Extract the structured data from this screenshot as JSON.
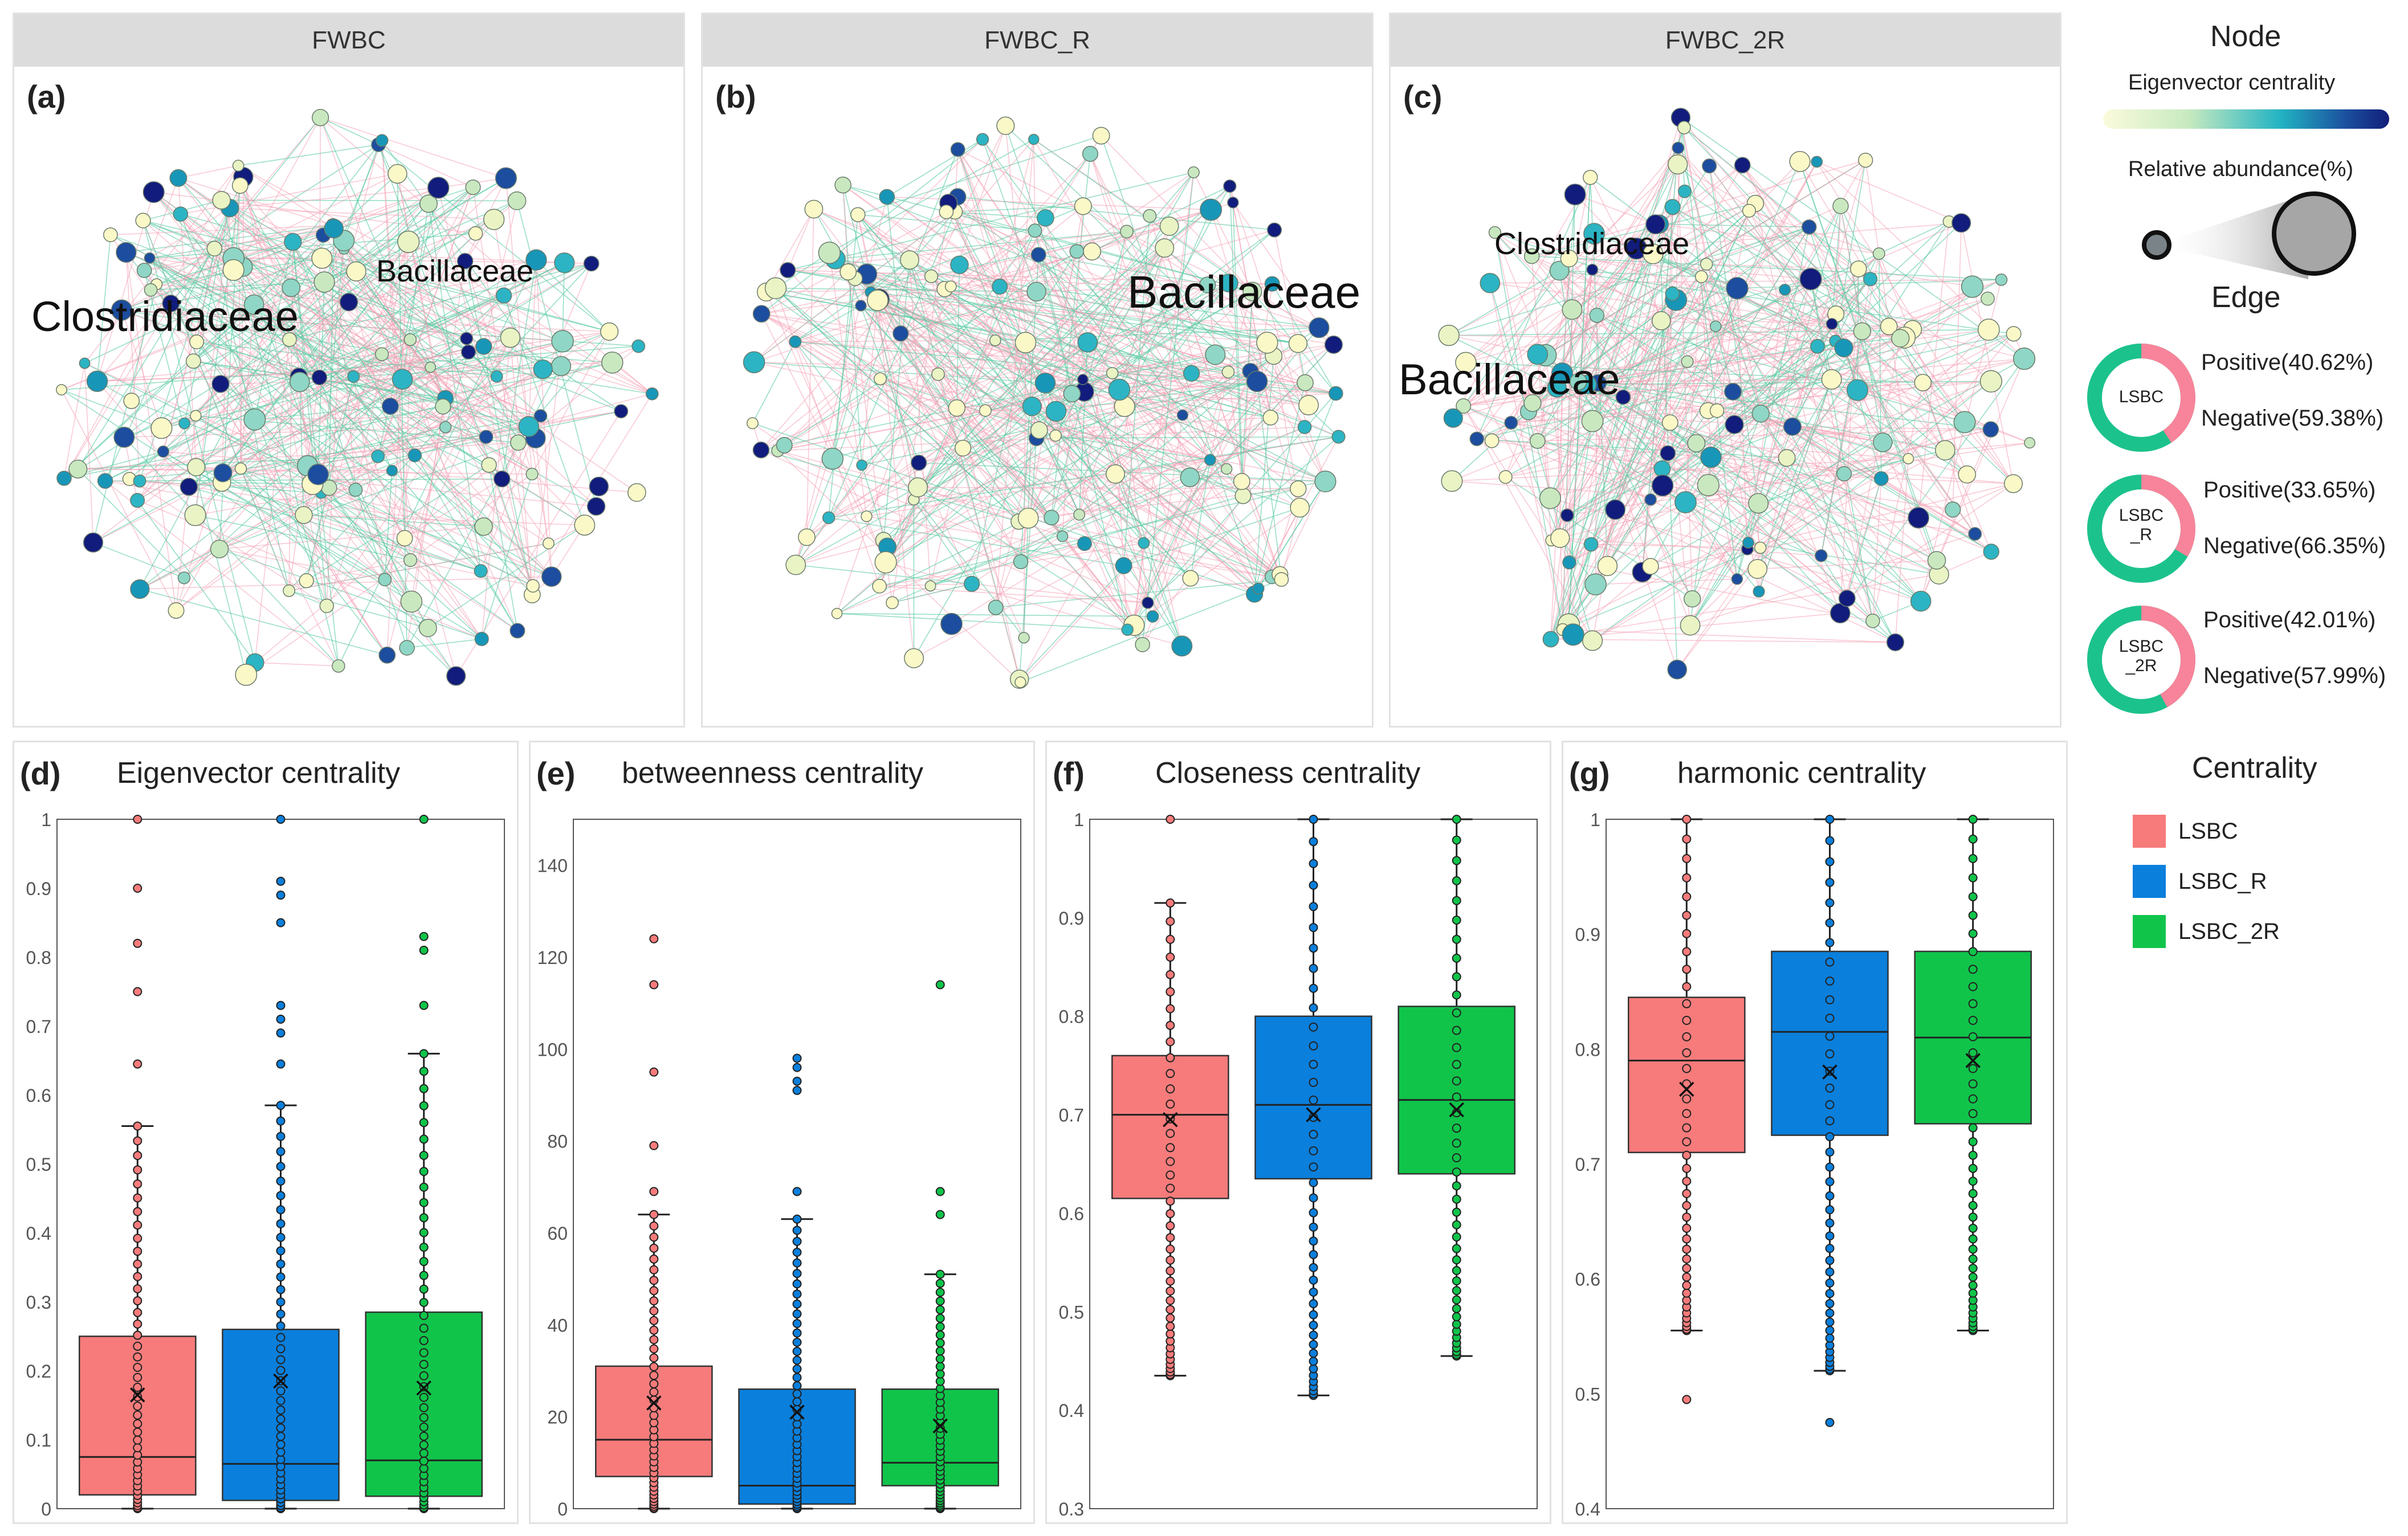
{
  "networks": [
    {
      "header": "FWBC",
      "tag": "(a)",
      "big_labels": [
        "Clostridiaceae",
        "Bacillaceae"
      ]
    },
    {
      "header": "FWBC_R",
      "tag": "(b)",
      "big_labels": [
        "Bacillaceae"
      ]
    },
    {
      "header": "FWBC_2R",
      "tag": "(c)",
      "big_labels": [
        "Clostridiaceae",
        "Bacillaceae"
      ]
    }
  ],
  "legend": {
    "node_title": "Node",
    "eigen_label": "Eigenvector centrality",
    "abundance_label": "Relative abundance(%)",
    "edge_title": "Edge",
    "rings": [
      {
        "center": "LSBC",
        "positive": "Positive(40.62%)",
        "negative": "Negative(59.38%)",
        "pos_frac": 0.4062
      },
      {
        "center": "LSBC_R",
        "positive": "Positive(33.65%)",
        "negative": "Negative(66.35%)",
        "pos_frac": 0.3365
      },
      {
        "center": "LSBC_2R",
        "positive": "Positive(42.01%)",
        "negative": "Negative(57.99%)",
        "pos_frac": 0.4201
      }
    ],
    "centrality_title": "Centrality",
    "groups": [
      {
        "name": "LSBC",
        "color": "#f77b7b"
      },
      {
        "name": "LSBC_R",
        "color": "#0a7fdc"
      },
      {
        "name": "LSBC_2R",
        "color": "#10c44a"
      }
    ],
    "colors": {
      "positive": "#f7849a",
      "negative": "#1cc28c",
      "edge_pos": "#f4a1b4",
      "edge_neg": "#57c9a2"
    }
  },
  "chart_data": [
    {
      "type": "box",
      "tag": "(d)",
      "title": "Eigenvector centrality",
      "ylim": [
        0,
        1
      ],
      "ticks": [
        "0",
        "0.1",
        "0.2",
        "0.3",
        "0.4",
        "0.5",
        "0.6",
        "0.7",
        "0.8",
        "0.9",
        "1"
      ],
      "series": [
        {
          "name": "LSBC",
          "min": 0,
          "q1": 0.02,
          "median": 0.075,
          "q3": 0.25,
          "max": 0.555,
          "mean": 0.165,
          "outliers": [
            0.645,
            0.75,
            0.82,
            0.9,
            1.0
          ]
        },
        {
          "name": "LSBC_R",
          "min": 0,
          "q1": 0.012,
          "median": 0.065,
          "q3": 0.26,
          "max": 0.585,
          "mean": 0.185,
          "outliers": [
            0.645,
            0.69,
            0.71,
            0.73,
            0.85,
            0.89,
            0.91,
            1.0
          ]
        },
        {
          "name": "LSBC_2R",
          "min": 0,
          "q1": 0.018,
          "median": 0.07,
          "q3": 0.285,
          "max": 0.66,
          "mean": 0.175,
          "outliers": [
            0.73,
            0.81,
            0.83,
            1.0
          ]
        }
      ]
    },
    {
      "type": "box",
      "tag": "(e)",
      "title": "betweenness centrality",
      "ylim": [
        0,
        150
      ],
      "ticks": [
        "0",
        "20",
        "40",
        "60",
        "80",
        "100",
        "120",
        "140"
      ],
      "series": [
        {
          "name": "LSBC",
          "min": 0,
          "q1": 7,
          "median": 15,
          "q3": 31,
          "max": 64,
          "mean": 23,
          "outliers": [
            69,
            79,
            95,
            114,
            124
          ]
        },
        {
          "name": "LSBC_R",
          "min": 0,
          "q1": 1,
          "median": 5,
          "q3": 26,
          "max": 63,
          "mean": 21,
          "outliers": [
            69,
            91,
            93,
            96,
            98
          ]
        },
        {
          "name": "LSBC_2R",
          "min": 0,
          "q1": 5,
          "median": 10,
          "q3": 26,
          "max": 51,
          "mean": 18,
          "outliers": [
            64,
            69,
            114
          ]
        }
      ]
    },
    {
      "type": "box",
      "tag": "(f)",
      "title": "Closeness centrality",
      "ylim": [
        0.3,
        1
      ],
      "ticks": [
        "0.3",
        "0.4",
        "0.5",
        "0.6",
        "0.7",
        "0.8",
        "0.9",
        "1"
      ],
      "series": [
        {
          "name": "LSBC",
          "min": 0.435,
          "q1": 0.615,
          "median": 0.7,
          "q3": 0.76,
          "max": 0.915,
          "mean": 0.695,
          "outliers": [
            1.0
          ]
        },
        {
          "name": "LSBC_R",
          "min": 0.415,
          "q1": 0.635,
          "median": 0.71,
          "q3": 0.8,
          "max": 1.0,
          "mean": 0.7,
          "outliers": []
        },
        {
          "name": "LSBC_2R",
          "min": 0.455,
          "q1": 0.64,
          "median": 0.715,
          "q3": 0.81,
          "max": 1.0,
          "mean": 0.705,
          "outliers": []
        }
      ]
    },
    {
      "type": "box",
      "tag": "(g)",
      "title": "harmonic centrality",
      "ylim": [
        0.4,
        1
      ],
      "ticks": [
        "0.4",
        "0.5",
        "0.6",
        "0.7",
        "0.8",
        "0.9",
        "1"
      ],
      "series": [
        {
          "name": "LSBC",
          "min": 0.555,
          "q1": 0.71,
          "median": 0.79,
          "q3": 0.845,
          "max": 1.0,
          "mean": 0.765,
          "outliers": [
            0.495
          ]
        },
        {
          "name": "LSBC_R",
          "min": 0.52,
          "q1": 0.725,
          "median": 0.815,
          "q3": 0.885,
          "max": 1.0,
          "mean": 0.78,
          "outliers": [
            0.475
          ]
        },
        {
          "name": "LSBC_2R",
          "min": 0.555,
          "q1": 0.735,
          "median": 0.81,
          "q3": 0.885,
          "max": 1.0,
          "mean": 0.79,
          "outliers": []
        }
      ]
    }
  ]
}
